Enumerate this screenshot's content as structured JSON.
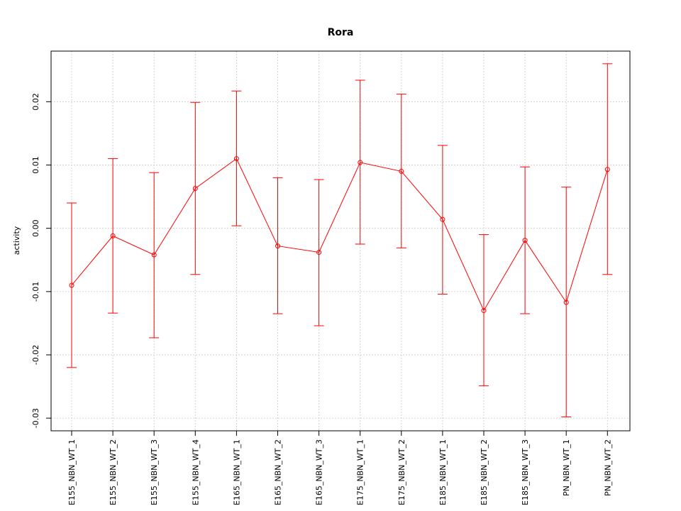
{
  "chart_data": {
    "type": "line",
    "title": "Rora",
    "xlabel": "",
    "ylabel": "activity",
    "ylim": [
      -0.032,
      0.028
    ],
    "yticks": [
      -0.03,
      -0.02,
      -0.01,
      0.0,
      0.01,
      0.02
    ],
    "ytick_labels": [
      "-0.03",
      "-0.02",
      "-0.01",
      "0.00",
      "0.01",
      "0.02"
    ],
    "grid": true,
    "series_color": "#ff0000",
    "grid_color": "#d3d3d3",
    "categories": [
      "E155_NBN_WT_1",
      "E155_NBN_WT_2",
      "E155_NBN_WT_3",
      "E155_NBN_WT_4",
      "E165_NBN_WT_1",
      "E165_NBN_WT_2",
      "E165_NBN_WT_3",
      "E175_NBN_WT_1",
      "E175_NBN_WT_2",
      "E185_NBN_WT_1",
      "E185_NBN_WT_2",
      "E185_NBN_WT_3",
      "PN_NBN_WT_1",
      "PN_NBN_WT_2"
    ],
    "series": [
      {
        "values": [
          -0.009,
          -0.0012,
          -0.0042,
          0.0063,
          0.011,
          -0.0028,
          -0.0038,
          0.0104,
          0.009,
          0.0014,
          -0.013,
          -0.0019,
          -0.0117,
          0.0093
        ],
        "lower": [
          -0.022,
          -0.0134,
          -0.0173,
          -0.0073,
          0.0004,
          -0.0135,
          -0.0154,
          -0.0025,
          -0.0031,
          -0.0104,
          -0.0249,
          -0.0135,
          -0.0298,
          -0.0073
        ],
        "upper": [
          0.004,
          0.011,
          0.0088,
          0.0199,
          0.0217,
          0.008,
          0.0077,
          0.0234,
          0.0212,
          0.0131,
          -0.001,
          0.0097,
          0.0065,
          0.026
        ]
      }
    ]
  }
}
